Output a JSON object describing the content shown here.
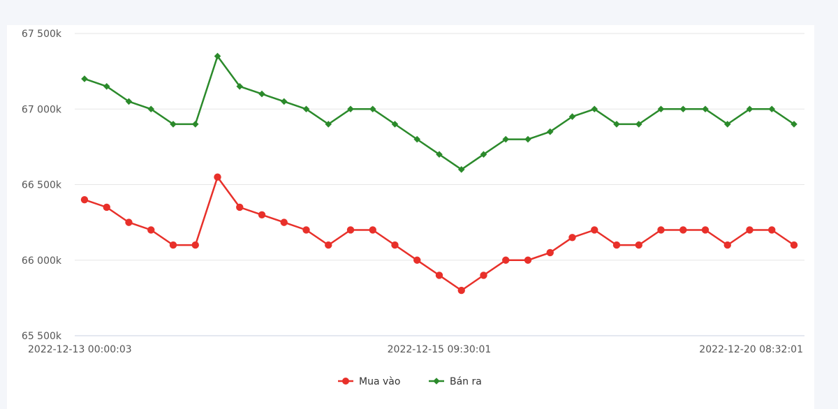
{
  "chart_data": {
    "type": "line",
    "title": "",
    "xlabel": "",
    "ylabel": "",
    "ylim": [
      65500,
      67500
    ],
    "yticks": [
      65500,
      66000,
      66500,
      67000,
      67500
    ],
    "ytick_labels": [
      "65 500k",
      "66 000k",
      "66 500k",
      "67 000k",
      "67 500k"
    ],
    "x_tick_labels": [
      {
        "index": 0,
        "label": "2022-12-13 00:00:03"
      },
      {
        "index": 16,
        "label": "2022-12-15 09:30:01"
      },
      {
        "index": 33,
        "label": "2022-12-20 08:32:01"
      }
    ],
    "grid": true,
    "legend_position": "bottom",
    "series": [
      {
        "name": "Mua vào",
        "color": "#e8302a",
        "marker": "circle",
        "values": [
          66400,
          66350,
          66250,
          66200,
          66100,
          66100,
          66550,
          66350,
          66300,
          66250,
          66200,
          66100,
          66200,
          66200,
          66100,
          66000,
          65900,
          65800,
          65900,
          66000,
          66000,
          66050,
          66150,
          66200,
          66100,
          66100,
          66200,
          66200,
          66200,
          66100,
          66200,
          66200,
          66100
        ]
      },
      {
        "name": "Bán ra",
        "color": "#2b8a2b",
        "marker": "diamond",
        "values": [
          67200,
          67150,
          67050,
          67000,
          66900,
          66900,
          67350,
          67150,
          67100,
          67050,
          67000,
          66900,
          67000,
          67000,
          66900,
          66800,
          66700,
          66600,
          66700,
          66800,
          66800,
          66850,
          66950,
          67000,
          66900,
          66900,
          67000,
          67000,
          67000,
          66900,
          67000,
          67000,
          66900
        ]
      }
    ]
  }
}
